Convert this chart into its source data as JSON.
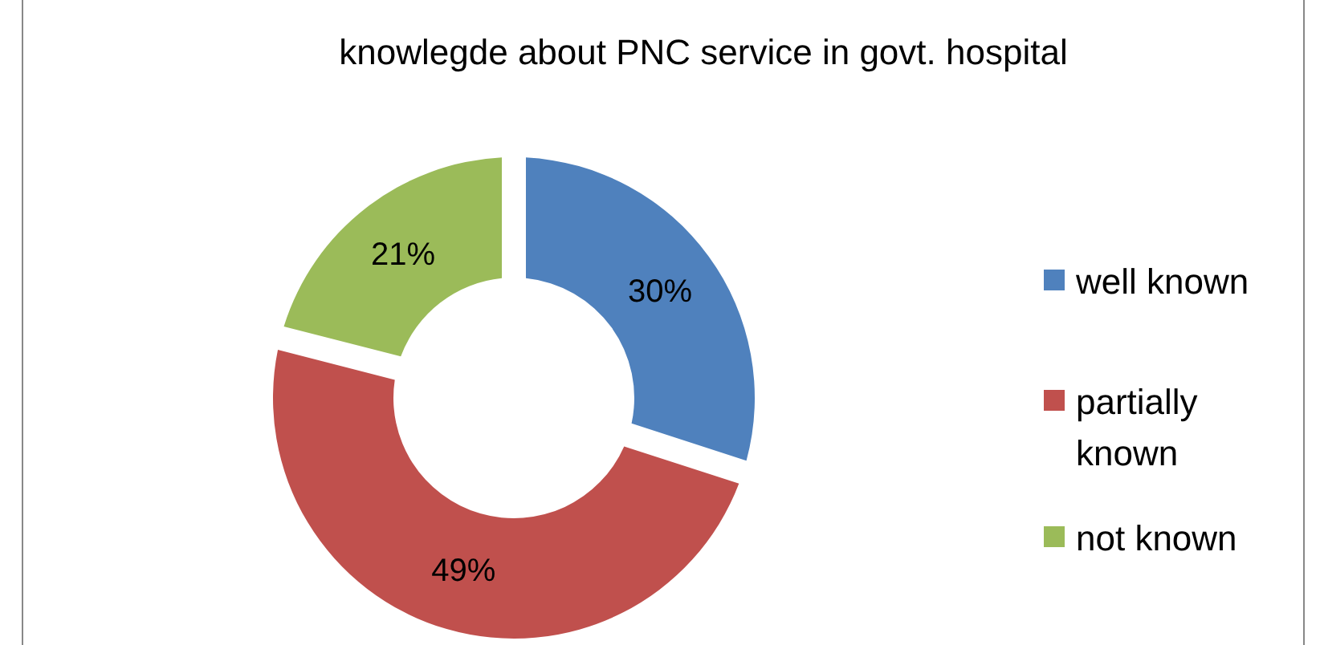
{
  "chart_data": {
    "type": "donut",
    "title": "knowlegde about PNC service in govt. hospital",
    "categories": [
      "well known",
      "partially known",
      "not known"
    ],
    "values": [
      30,
      49,
      21
    ],
    "colors": [
      "#4f81bd",
      "#c0504d",
      "#9bbb59"
    ],
    "value_labels": [
      "30%",
      "49%",
      "21%"
    ],
    "legend": "right"
  }
}
